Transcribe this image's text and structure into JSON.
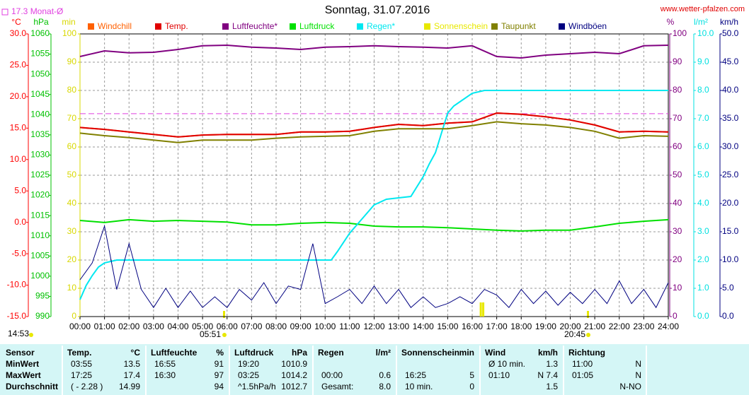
{
  "chart_data": {
    "type": "line",
    "title": "Sonntag, 31.07.2016",
    "source": "www.wetter-pfalzen.com",
    "grid": true,
    "reference": {
      "label": "17.3 Monat-Ø",
      "value": 17.3,
      "axis": "temp",
      "color": "#e040e0"
    },
    "axes": {
      "temp": {
        "label": "°C",
        "color": "#ff0000",
        "lim": [
          -15,
          30
        ],
        "ticks": [
          {
            "value": -15,
            "label": "-15.0"
          },
          {
            "value": -10,
            "label": "-10.0"
          },
          {
            "value": -5,
            "label": "-5.0"
          },
          {
            "value": 0,
            "label": "0.0"
          },
          {
            "value": 5,
            "label": "5.0"
          },
          {
            "value": 10,
            "label": "10.0"
          },
          {
            "value": 15,
            "label": "15.0"
          },
          {
            "value": 20,
            "label": "20.0"
          },
          {
            "value": 25,
            "label": "25.0"
          },
          {
            "value": 30,
            "label": "30.0"
          }
        ]
      },
      "pressure": {
        "label": "hPa",
        "color": "#00c000",
        "lim": [
          990,
          1060
        ],
        "ticks": [
          990,
          995,
          1000,
          1005,
          1010,
          1015,
          1020,
          1025,
          1030,
          1035,
          1040,
          1045,
          1050,
          1055,
          1060
        ]
      },
      "minutes": {
        "label": "min",
        "color": "#d8d800",
        "lim": [
          0,
          100
        ],
        "ticks": [
          0,
          10,
          20,
          30,
          40,
          50,
          60,
          70,
          80,
          90,
          100
        ]
      },
      "percent": {
        "label": "%",
        "color": "#800080",
        "lim": [
          0,
          100
        ],
        "ticks": [
          0,
          10,
          20,
          30,
          40,
          50,
          60,
          70,
          80,
          90,
          100
        ]
      },
      "rain": {
        "label": "l/m²",
        "color": "#00e0e0",
        "lim": [
          0,
          10
        ],
        "ticks": [
          {
            "value": 0,
            "label": "0.0"
          },
          {
            "value": 1,
            "label": "1.0"
          },
          {
            "value": 2,
            "label": "2.0"
          },
          {
            "value": 3,
            "label": "3.0"
          },
          {
            "value": 4,
            "label": "4.0"
          },
          {
            "value": 5,
            "label": "5.0"
          },
          {
            "value": 6,
            "label": "6.0"
          },
          {
            "value": 7,
            "label": "7.0"
          },
          {
            "value": 8,
            "label": "8.0"
          },
          {
            "value": 9,
            "label": "9.0"
          },
          {
            "value": 10,
            "label": "10.0"
          }
        ]
      },
      "wind": {
        "label": "km/h",
        "color": "#000080",
        "lim": [
          0,
          50
        ],
        "ticks": [
          {
            "value": 0,
            "label": "0.0"
          },
          {
            "value": 5,
            "label": "5.0"
          },
          {
            "value": 10,
            "label": "10.0"
          },
          {
            "value": 15,
            "label": "15.0"
          },
          {
            "value": 20,
            "label": "20.0"
          },
          {
            "value": 25,
            "label": "25.0"
          },
          {
            "value": 30,
            "label": "30.0"
          },
          {
            "value": 35,
            "label": "35.0"
          },
          {
            "value": 40,
            "label": "40.0"
          },
          {
            "value": 45,
            "label": "45.0"
          },
          {
            "value": 50,
            "label": "50.0"
          }
        ]
      }
    },
    "xlim": [
      0,
      24
    ],
    "xticks": [
      {
        "value": 0,
        "label": "00:00"
      },
      {
        "value": 1,
        "label": "01:00"
      },
      {
        "value": 2,
        "label": "02:00"
      },
      {
        "value": 3,
        "label": "03:00"
      },
      {
        "value": 4,
        "label": "04:00"
      },
      {
        "value": 5,
        "label": "05:00"
      },
      {
        "value": 6,
        "label": "06:00"
      },
      {
        "value": 7,
        "label": "07:00"
      },
      {
        "value": 8,
        "label": "08:00"
      },
      {
        "value": 9,
        "label": "09:00"
      },
      {
        "value": 10,
        "label": "10:00"
      },
      {
        "value": 11,
        "label": "11:00"
      },
      {
        "value": 12,
        "label": "12:00"
      },
      {
        "value": 13,
        "label": "13:00"
      },
      {
        "value": 14,
        "label": "14:00"
      },
      {
        "value": 15,
        "label": "15:00"
      },
      {
        "value": 16,
        "label": "16:00"
      },
      {
        "value": 17,
        "label": "17:00"
      },
      {
        "value": 18,
        "label": "18:00"
      },
      {
        "value": 19,
        "label": "19:00"
      },
      {
        "value": 20,
        "label": "20:00"
      },
      {
        "value": 21,
        "label": "21:00"
      },
      {
        "value": 22,
        "label": "22:00"
      },
      {
        "value": 23,
        "label": "23:00"
      },
      {
        "value": 24,
        "label": "24:00"
      }
    ],
    "x": [
      0,
      1,
      2,
      3,
      4,
      5,
      6,
      7,
      8,
      9,
      10,
      11,
      12,
      13,
      14,
      15,
      16,
      17,
      18,
      19,
      20,
      21,
      22,
      23,
      24
    ],
    "series": [
      {
        "name": "Windchill",
        "color": "#ff6000",
        "axis": "temp",
        "values": [
          15.1,
          14.8,
          14.4,
          14.0,
          13.6,
          13.9,
          14.0,
          14.0,
          14.0,
          14.4,
          14.4,
          14.5,
          15.1,
          15.6,
          15.4,
          15.8,
          16.0,
          17.4,
          17.2,
          16.8,
          16.3,
          15.5,
          14.4,
          14.5,
          14.4
        ]
      },
      {
        "name": "Temp.",
        "color": "#e00000",
        "axis": "temp",
        "values": [
          15.1,
          14.8,
          14.4,
          14.0,
          13.6,
          13.9,
          14.0,
          14.0,
          14.0,
          14.4,
          14.4,
          14.5,
          15.1,
          15.6,
          15.4,
          15.8,
          16.0,
          17.4,
          17.2,
          16.8,
          16.3,
          15.5,
          14.4,
          14.5,
          14.4
        ]
      },
      {
        "name": "Luftfeuchte*",
        "color": "#800080",
        "axis": "percent",
        "values": [
          92,
          94,
          93.3,
          93.5,
          94.5,
          95.8,
          96,
          95.3,
          95,
          94.5,
          95.3,
          95.5,
          95.8,
          95.5,
          95.3,
          95,
          95.8,
          92,
          91.5,
          92.5,
          93,
          93.5,
          93,
          95.8,
          96
        ]
      },
      {
        "name": "Luftdruck",
        "color": "#00e000",
        "axis": "pressure",
        "values": [
          1013.8,
          1013.3,
          1014.0,
          1013.6,
          1013.8,
          1013.6,
          1013.4,
          1012.7,
          1012.7,
          1013.1,
          1013.3,
          1013.1,
          1012.4,
          1012.2,
          1012.2,
          1012.0,
          1011.7,
          1011.4,
          1011.2,
          1011.4,
          1011.4,
          1012.2,
          1013.1,
          1013.6,
          1014.0
        ]
      },
      {
        "name": "Regen*",
        "color": "#00e8f0",
        "axis": "rain",
        "x": [
          0,
          0.25,
          0.5,
          0.75,
          1,
          1.5,
          2,
          10,
          10.25,
          10.5,
          11,
          11.5,
          12,
          12.5,
          13,
          13.5,
          14,
          14.25,
          14.5,
          14.75,
          15,
          15.25,
          15.5,
          16,
          16.5,
          24
        ],
        "values": [
          0.6,
          1.1,
          1.45,
          1.75,
          1.9,
          2.0,
          2.0,
          2.0,
          2.0,
          2.3,
          2.95,
          3.45,
          3.95,
          4.15,
          4.2,
          4.25,
          4.95,
          5.4,
          5.8,
          6.5,
          7.2,
          7.45,
          7.6,
          7.9,
          8.0,
          8.0
        ]
      },
      {
        "name": "Sonnenschein",
        "color": "#e8e800",
        "axis": "minutes",
        "style": "bar",
        "x": [
          16.35,
          16.45
        ],
        "values": [
          5,
          5
        ]
      },
      {
        "name": "Taupunkt",
        "color": "#808000",
        "axis": "temp",
        "values": [
          14.2,
          13.8,
          13.5,
          13.1,
          12.7,
          13.1,
          13.1,
          13.1,
          13.4,
          13.6,
          13.7,
          13.8,
          14.5,
          14.9,
          14.9,
          14.9,
          15.4,
          16.0,
          15.7,
          15.5,
          15.1,
          14.5,
          13.4,
          13.8,
          13.7
        ]
      },
      {
        "name": "Windböen",
        "color": "#000080",
        "axis": "wind",
        "x": [
          0,
          0.5,
          1,
          1.5,
          2,
          2.5,
          3,
          3.5,
          4,
          4.5,
          5,
          5.5,
          6,
          6.5,
          7,
          7.5,
          8,
          8.5,
          9,
          9.5,
          10,
          10.5,
          11,
          11.5,
          12,
          12.5,
          13,
          13.5,
          14,
          14.5,
          15,
          15.5,
          16,
          16.5,
          17,
          17.5,
          18,
          18.5,
          19,
          19.5,
          20,
          20.5,
          21,
          21.5,
          22,
          22.5,
          23,
          23.5,
          24
        ],
        "values": [
          6.5,
          9.5,
          16.0,
          4.8,
          12.9,
          4.8,
          1.6,
          5.0,
          1.6,
          4.5,
          1.6,
          3.5,
          1.6,
          4.8,
          2.9,
          6.0,
          2.3,
          5.4,
          4.8,
          12.9,
          2.3,
          3.5,
          4.8,
          2.3,
          5.4,
          2.3,
          4.8,
          1.6,
          3.5,
          1.6,
          2.3,
          3.5,
          2.3,
          4.8,
          3.8,
          1.6,
          4.8,
          2.3,
          4.5,
          2.0,
          4.3,
          2.3,
          4.8,
          2.3,
          6.3,
          2.3,
          4.8,
          1.6,
          6.0
        ]
      }
    ],
    "annotations": [
      "14:53",
      "05:51",
      "20:45"
    ]
  },
  "table": {
    "stub": [
      "Sensor",
      "MinWert",
      "MaxWert",
      "Durchschnitt"
    ],
    "groups": [
      {
        "label": "Temp.",
        "unit": "°C",
        "rows": [
          [
            "03:55",
            "13.5"
          ],
          [
            "17:25",
            "17.4"
          ],
          [
            "( - 2.28 )",
            "14.99"
          ]
        ]
      },
      {
        "label": "Luftfeuchte",
        "unit": "%",
        "rows": [
          [
            "16:55",
            "91"
          ],
          [
            "16:30",
            "97"
          ],
          [
            null,
            "94"
          ]
        ]
      },
      {
        "label": "Luftdruck",
        "unit": "hPa",
        "rows": [
          [
            "19:20",
            "1010.9"
          ],
          [
            "03:25",
            "1014.2"
          ],
          [
            "^1.5hPa/h",
            "1012.7"
          ]
        ]
      },
      {
        "label": "Regen",
        "unit": "l/m²",
        "rows": [
          [
            null,
            null
          ],
          [
            "00:00",
            "0.6"
          ],
          [
            "Gesamt:",
            "8.0"
          ]
        ]
      },
      {
        "label": "Sonnenschein",
        "unit": "min",
        "rows": [
          [
            null,
            null
          ],
          [
            "16:25",
            "5"
          ],
          [
            "10 min.",
            "0"
          ]
        ]
      },
      {
        "label": "Wind",
        "unit": "km/h",
        "rows": [
          [
            "Ø 10 min.",
            "1.3"
          ],
          [
            "01:10",
            "N 7.4"
          ],
          [
            null,
            "1.5"
          ]
        ]
      },
      {
        "label": "Richtung",
        "rows": [
          [
            "11:00",
            "N"
          ],
          [
            "01:05",
            "N"
          ],
          [
            null,
            "N-NO"
          ]
        ]
      }
    ]
  }
}
